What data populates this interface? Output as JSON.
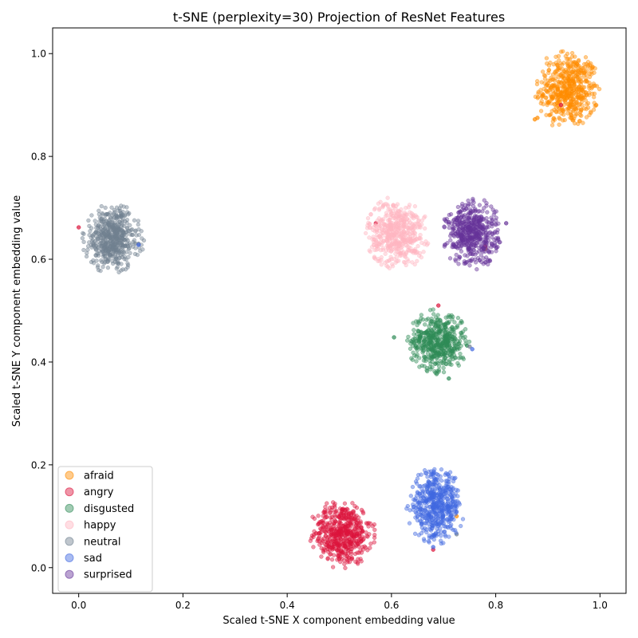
{
  "chart_data": {
    "type": "scatter",
    "title": "t-SNE (perplexity=30) Projection of ResNet Features",
    "xlabel": "Scaled t-SNE X component embedding value",
    "ylabel": "Scaled t-SNE Y component embedding value",
    "xlim": [
      -0.05,
      1.05
    ],
    "ylim": [
      -0.05,
      1.05
    ],
    "xticks": [
      0.0,
      0.2,
      0.4,
      0.6,
      0.8,
      1.0
    ],
    "yticks": [
      0.0,
      0.2,
      0.4,
      0.6,
      0.8,
      1.0
    ],
    "xtick_labels": [
      "0.0",
      "0.2",
      "0.4",
      "0.6",
      "0.8",
      "1.0"
    ],
    "ytick_labels": [
      "0.0",
      "0.2",
      "0.4",
      "0.6",
      "0.8",
      "1.0"
    ],
    "grid": false,
    "legend_position": "lower-left",
    "point_alpha": 0.45,
    "series": [
      {
        "name": "afraid",
        "color": "#ff8c00",
        "center": [
          0.94,
          0.93
        ],
        "spread": [
          0.032,
          0.04
        ],
        "n": 520,
        "outliers": [
          [
            0.875,
            0.872
          ],
          [
            0.88,
            0.875
          ],
          [
            0.78,
            0.62
          ],
          [
            0.725,
            0.1
          ]
        ]
      },
      {
        "name": "angry",
        "color": "#dc143c",
        "center": [
          0.505,
          0.065
        ],
        "spread": [
          0.032,
          0.034
        ],
        "n": 520,
        "outliers": [
          [
            0.0,
            0.662
          ],
          [
            0.57,
            0.67
          ],
          [
            0.78,
            0.625
          ],
          [
            0.69,
            0.51
          ],
          [
            0.68,
            0.035
          ],
          [
            0.925,
            0.9
          ]
        ]
      },
      {
        "name": "disgusted",
        "color": "#2e8b57",
        "center": [
          0.69,
          0.44
        ],
        "spread": [
          0.03,
          0.032
        ],
        "n": 500,
        "outliers": [
          [
            0.605,
            0.448
          ],
          [
            0.745,
            0.432
          ],
          [
            0.71,
            0.368
          ]
        ]
      },
      {
        "name": "happy",
        "color": "#ffb6c1",
        "center": [
          0.61,
          0.65
        ],
        "spread": [
          0.031,
          0.036
        ],
        "n": 500,
        "outliers": [
          [
            0.57,
            0.665
          ]
        ]
      },
      {
        "name": "neutral",
        "color": "#708090",
        "center": [
          0.065,
          0.64
        ],
        "spread": [
          0.03,
          0.034
        ],
        "n": 520,
        "outliers": [
          [
            0.725,
            0.065
          ],
          [
            0.75,
            0.43
          ],
          [
            0.115,
            0.63
          ]
        ]
      },
      {
        "name": "sad",
        "color": "#4169e1",
        "center": [
          0.685,
          0.12
        ],
        "spread": [
          0.028,
          0.038
        ],
        "n": 500,
        "outliers": [
          [
            0.115,
            0.628
          ],
          [
            0.755,
            0.425
          ],
          [
            0.68,
            0.04
          ]
        ]
      },
      {
        "name": "surprised",
        "color": "#663399",
        "center": [
          0.755,
          0.65
        ],
        "spread": [
          0.029,
          0.035
        ],
        "n": 500,
        "outliers": [
          [
            0.82,
            0.67
          ]
        ]
      }
    ]
  }
}
